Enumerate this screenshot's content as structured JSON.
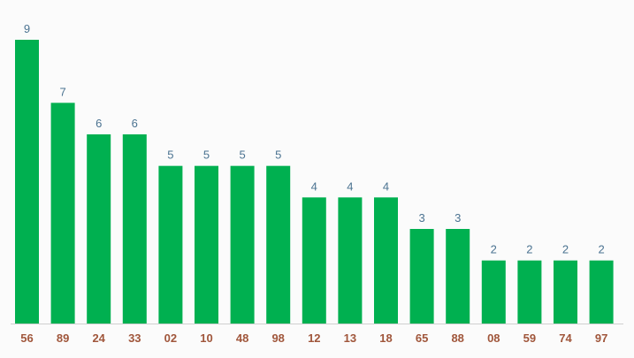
{
  "chart_data": {
    "type": "bar",
    "categories": [
      "56",
      "89",
      "24",
      "33",
      "02",
      "10",
      "48",
      "98",
      "12",
      "13",
      "18",
      "65",
      "88",
      "08",
      "59",
      "74",
      "97"
    ],
    "values": [
      9,
      7,
      6,
      6,
      5,
      5,
      5,
      5,
      4,
      4,
      4,
      3,
      3,
      2,
      2,
      2,
      2
    ],
    "ylim": [
      0,
      9
    ],
    "grid": false,
    "legend": "none",
    "bar_color": "#00b050",
    "value_label_color": "#4b7391",
    "category_label_color": "#a0563b",
    "axis_color": "#d0d0d0",
    "background": "#fbfbfb"
  }
}
